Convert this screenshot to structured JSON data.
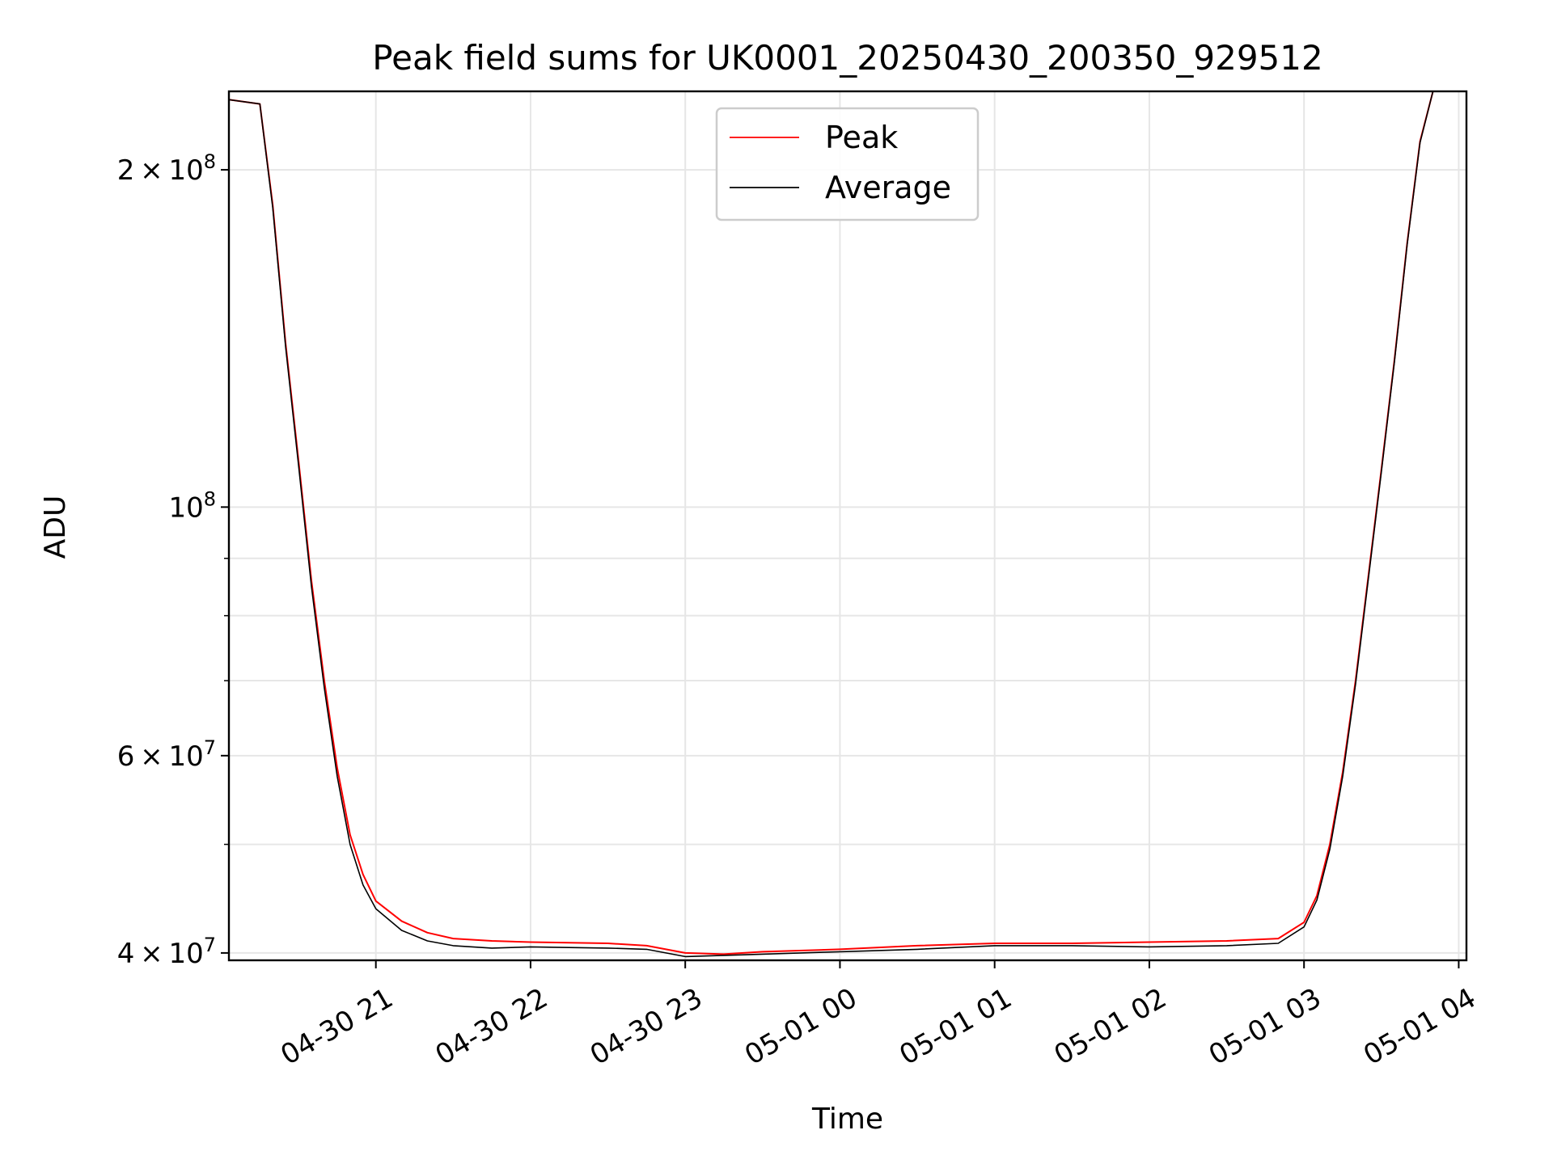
{
  "chart_data": {
    "type": "line",
    "title": "Peak field sums for UK0001_20250430_200350_929512",
    "xlabel": "Time",
    "ylabel": "ADU",
    "y_scale": "log",
    "ylim": [
      39400000,
      235000000
    ],
    "xlim": [
      "2025-04-30 20:03",
      "2025-05-01 04:03"
    ],
    "grid": true,
    "legend_position": "upper center",
    "x_ticks": [
      "2025-04-30 21:00",
      "2025-04-30 22:00",
      "2025-04-30 23:00",
      "2025-05-01 00:00",
      "2025-05-01 01:00",
      "2025-05-01 02:00",
      "2025-05-01 03:00",
      "2025-05-01 04:00"
    ],
    "x_tick_labels": [
      "04-30 21",
      "04-30 22",
      "04-30 23",
      "05-01 00",
      "05-01 01",
      "05-01 02",
      "05-01 03",
      "05-01 04"
    ],
    "y_major_ticks": [
      {
        "value": 40000000,
        "mantissa": "4",
        "exponent": "7"
      },
      {
        "value": 60000000,
        "mantissa": "6",
        "exponent": "7"
      },
      {
        "value": 100000000,
        "mantissa": "",
        "exponent": "8"
      },
      {
        "value": 200000000,
        "mantissa": "2",
        "exponent": "8"
      }
    ],
    "y_minor_ticks": [
      50000000,
      70000000,
      80000000,
      90000000
    ],
    "series": [
      {
        "name": "Peak",
        "color": "#ff0000",
        "x": [
          "2025-04-30 20:03",
          "2025-04-30 20:15",
          "2025-04-30 20:20",
          "2025-04-30 20:25",
          "2025-04-30 20:30",
          "2025-04-30 20:35",
          "2025-04-30 20:40",
          "2025-04-30 20:45",
          "2025-04-30 20:50",
          "2025-04-30 20:55",
          "2025-04-30 21:00",
          "2025-04-30 21:10",
          "2025-04-30 21:20",
          "2025-04-30 21:30",
          "2025-04-30 21:45",
          "2025-04-30 22:00",
          "2025-04-30 22:30",
          "2025-04-30 22:45",
          "2025-04-30 23:00",
          "2025-04-30 23:15",
          "2025-04-30 23:30",
          "2025-05-01 00:00",
          "2025-05-01 00:30",
          "2025-05-01 01:00",
          "2025-05-01 01:30",
          "2025-05-01 02:00",
          "2025-05-01 02:30",
          "2025-05-01 02:50",
          "2025-05-01 03:00",
          "2025-05-01 03:05",
          "2025-05-01 03:10",
          "2025-05-01 03:15",
          "2025-05-01 03:20",
          "2025-05-01 03:25",
          "2025-05-01 03:30",
          "2025-05-01 03:35",
          "2025-05-01 03:40",
          "2025-05-01 03:45",
          "2025-05-01 03:50"
        ],
        "y": [
          231000000,
          229000000,
          186000000,
          140000000,
          110000000,
          86000000,
          70000000,
          58500000,
          51000000,
          47000000,
          44500000,
          42700000,
          41700000,
          41200000,
          41000000,
          40900000,
          40800000,
          40600000,
          40000000,
          39900000,
          40100000,
          40300000,
          40600000,
          40800000,
          40800000,
          40900000,
          41000000,
          41200000,
          42600000,
          45000000,
          50000000,
          58000000,
          70000000,
          87000000,
          108000000,
          135000000,
          172000000,
          212000000,
          235000000
        ]
      },
      {
        "name": "Average",
        "color": "#000000",
        "x": [
          "2025-04-30 20:03",
          "2025-04-30 20:15",
          "2025-04-30 20:20",
          "2025-04-30 20:25",
          "2025-04-30 20:30",
          "2025-04-30 20:35",
          "2025-04-30 20:40",
          "2025-04-30 20:45",
          "2025-04-30 20:50",
          "2025-04-30 20:55",
          "2025-04-30 21:00",
          "2025-04-30 21:10",
          "2025-04-30 21:20",
          "2025-04-30 21:30",
          "2025-04-30 21:45",
          "2025-04-30 22:00",
          "2025-04-30 22:30",
          "2025-04-30 22:45",
          "2025-04-30 23:00",
          "2025-04-30 23:15",
          "2025-04-30 23:30",
          "2025-05-01 00:00",
          "2025-05-01 00:30",
          "2025-05-01 01:00",
          "2025-05-01 01:30",
          "2025-05-01 02:00",
          "2025-05-01 02:30",
          "2025-05-01 02:50",
          "2025-05-01 03:00",
          "2025-05-01 03:05",
          "2025-05-01 03:10",
          "2025-05-01 03:15",
          "2025-05-01 03:20",
          "2025-05-01 03:25",
          "2025-05-01 03:30",
          "2025-05-01 03:35",
          "2025-05-01 03:40",
          "2025-05-01 03:45",
          "2025-05-01 03:50"
        ],
        "y": [
          231000000,
          229000000,
          185000000,
          139000000,
          109000000,
          85000000,
          69000000,
          57500000,
          50000000,
          46000000,
          43800000,
          41900000,
          41000000,
          40600000,
          40400000,
          40500000,
          40400000,
          40300000,
          39700000,
          39800000,
          39900000,
          40100000,
          40300000,
          40600000,
          40600000,
          40500000,
          40600000,
          40800000,
          42200000,
          44600000,
          49500000,
          57500000,
          69500000,
          86500000,
          107500000,
          134500000,
          171500000,
          211500000,
          235000000
        ]
      }
    ]
  }
}
